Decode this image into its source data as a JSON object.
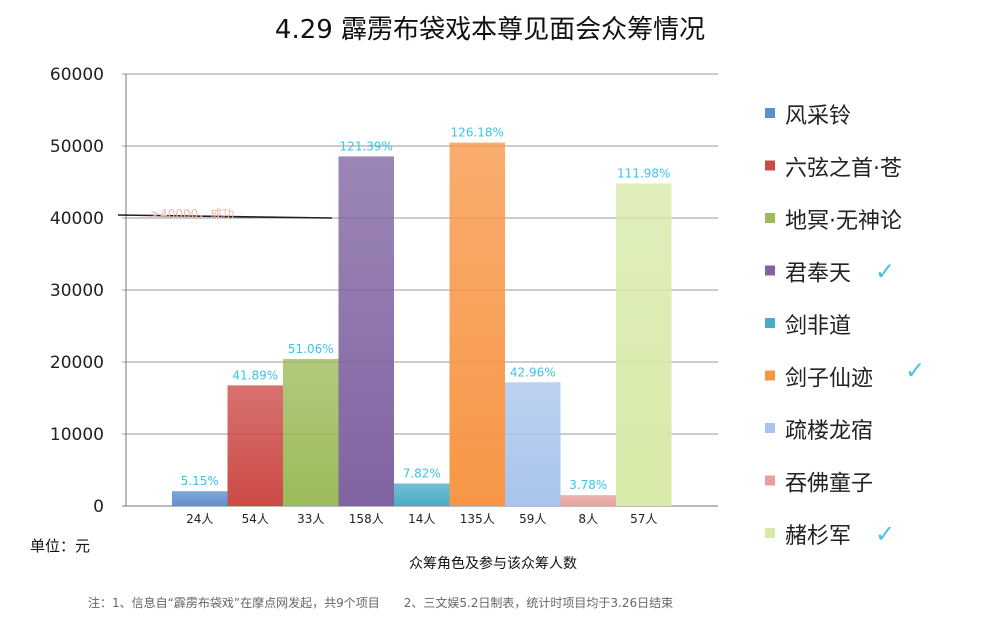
{
  "chart_data": {
    "type": "bar",
    "title": "4.29 霹雳布袋戏本尊见面会众筹情况",
    "ylabel": "单位：元",
    "xlabel": "众筹角色及参与该众筹人数",
    "ylim": [
      0,
      60000
    ],
    "yticks": [
      "0",
      "10000",
      "20000",
      "30000",
      "40000",
      "50000",
      "60000"
    ],
    "grid": true,
    "legend_position": "right",
    "categories": [
      "风采铃",
      "六弦之首·苍",
      "地冥·无神论",
      "君奉天",
      "剑非道",
      "剑子仙迹",
      "疏楼龙宿",
      "吞佛童子",
      "赭杉军"
    ],
    "participants": [
      "24人",
      "54人",
      "33人",
      "158人",
      "14人",
      "135人",
      "59人",
      "8人",
      "57人"
    ],
    "values": [
      2060,
      16756,
      20424,
      48556,
      3128,
      50472,
      17184,
      1512,
      44792
    ],
    "percent_labels": [
      "5.15%",
      "41.89%",
      "51.06%",
      "121.39%",
      "7.82%",
      "126.18%",
      "42.96%",
      "3.78%",
      "111.98%"
    ],
    "checked": [
      false,
      false,
      false,
      true,
      false,
      true,
      false,
      false,
      true
    ],
    "colors": [
      "#5d8fce",
      "#cc4a46",
      "#9bbb59",
      "#8064a2",
      "#4bacc6",
      "#f79646",
      "#a9c4ec",
      "#e8a09e",
      "#d7eaa8"
    ],
    "annotation": {
      "text": ">40000，成功",
      "value": 40000
    }
  },
  "legend_check_symbol": "✓",
  "footnote": "注：1、信息自“霹雳布袋戏”在摩点网发起，共9个项目　　2、三文娱5.2日制表，统计时项目均于3.26日结束"
}
